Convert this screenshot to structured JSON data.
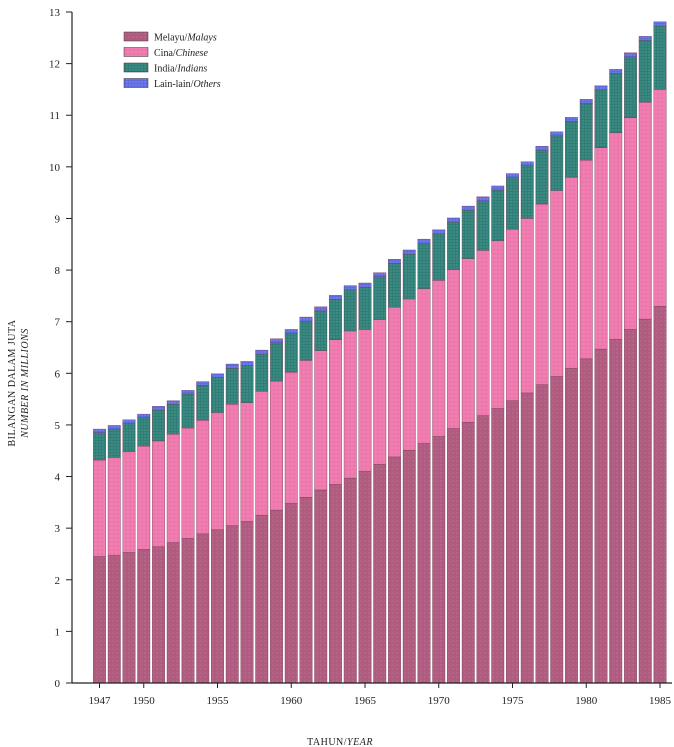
{
  "chart_data": {
    "type": "bar",
    "stacked": true,
    "ylabel": "BILANGAN DALAM JUTA",
    "ylabel_en": "NUMBER IN MILLIONS",
    "xlabel": "TAHUN/",
    "xlabel_en": "YEAR",
    "ylim": [
      0,
      13
    ],
    "y_ticks": [
      "0",
      "1",
      "2",
      "3",
      "4",
      "5",
      "6",
      "7",
      "8",
      "9",
      "10",
      "11",
      "12",
      "13"
    ],
    "x_ticks": [
      {
        "year": 1947,
        "label": "1947"
      },
      {
        "year": 1950,
        "label": "1950"
      },
      {
        "year": 1955,
        "label": "1955"
      },
      {
        "year": 1960,
        "label": "1960"
      },
      {
        "year": 1965,
        "label": "1965"
      },
      {
        "year": 1970,
        "label": "1970"
      },
      {
        "year": 1975,
        "label": "1975"
      },
      {
        "year": 1980,
        "label": "1980"
      },
      {
        "year": 1985,
        "label": "1985"
      }
    ],
    "legend_position": "top-left",
    "categories": [
      1947,
      1948,
      1949,
      1950,
      1951,
      1952,
      1953,
      1954,
      1955,
      1956,
      1957,
      1958,
      1959,
      1960,
      1961,
      1962,
      1963,
      1964,
      1965,
      1966,
      1967,
      1968,
      1969,
      1970,
      1971,
      1972,
      1973,
      1974,
      1975,
      1976,
      1977,
      1978,
      1979,
      1980,
      1981,
      1982,
      1983,
      1984,
      1985
    ],
    "series": [
      {
        "name": "Melayu/",
        "name_en": "Malays",
        "color": "#b05c80",
        "values": [
          2.45,
          2.47,
          2.53,
          2.59,
          2.64,
          2.72,
          2.8,
          2.89,
          2.97,
          3.05,
          3.13,
          3.25,
          3.35,
          3.48,
          3.6,
          3.74,
          3.85,
          3.97,
          4.1,
          4.24,
          4.38,
          4.51,
          4.64,
          4.78,
          4.93,
          5.05,
          5.18,
          5.32,
          5.47,
          5.62,
          5.78,
          5.94,
          6.1,
          6.28,
          6.47,
          6.66,
          6.85,
          7.05,
          7.3
        ]
      },
      {
        "name": "Cina/",
        "name_en": "Chinese",
        "color": "#f07cb0",
        "values": [
          1.87,
          1.9,
          1.95,
          2.0,
          2.05,
          2.1,
          2.14,
          2.2,
          2.27,
          2.35,
          2.3,
          2.4,
          2.5,
          2.54,
          2.65,
          2.7,
          2.8,
          2.85,
          2.75,
          2.8,
          2.9,
          2.93,
          3.0,
          3.02,
          3.08,
          3.17,
          3.2,
          3.25,
          3.32,
          3.38,
          3.5,
          3.6,
          3.7,
          3.85,
          3.9,
          4.0,
          4.1,
          4.2,
          4.2
        ]
      },
      {
        "name": "India/",
        "name_en": "Indians",
        "color": "#2f7f78",
        "values": [
          0.53,
          0.55,
          0.55,
          0.55,
          0.6,
          0.58,
          0.66,
          0.68,
          0.68,
          0.7,
          0.72,
          0.72,
          0.74,
          0.75,
          0.76,
          0.77,
          0.78,
          0.8,
          0.82,
          0.83,
          0.85,
          0.87,
          0.88,
          0.9,
          0.92,
          0.94,
          0.96,
          0.98,
          1.0,
          1.02,
          1.04,
          1.06,
          1.08,
          1.1,
          1.12,
          1.15,
          1.18,
          1.2,
          1.23
        ]
      },
      {
        "name": "Lain-lain/",
        "name_en": "Others",
        "color": "#5f6ae0",
        "values": [
          0.07,
          0.07,
          0.07,
          0.07,
          0.07,
          0.07,
          0.07,
          0.07,
          0.07,
          0.08,
          0.08,
          0.08,
          0.08,
          0.08,
          0.08,
          0.08,
          0.08,
          0.08,
          0.08,
          0.08,
          0.08,
          0.08,
          0.08,
          0.08,
          0.08,
          0.08,
          0.08,
          0.08,
          0.08,
          0.08,
          0.08,
          0.08,
          0.08,
          0.08,
          0.08,
          0.08,
          0.08,
          0.08,
          0.08
        ]
      }
    ]
  }
}
